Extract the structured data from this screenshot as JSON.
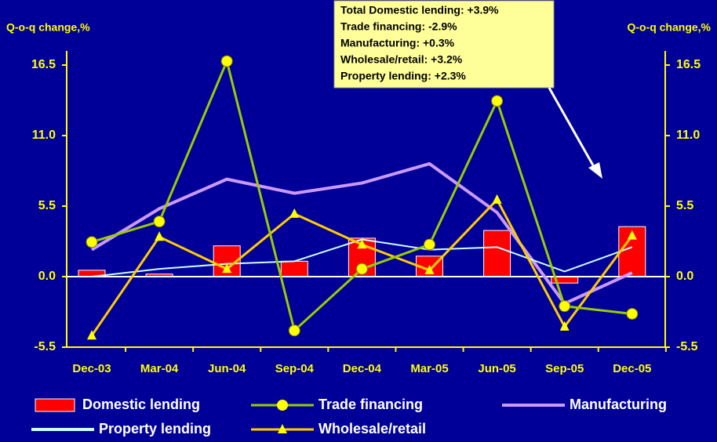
{
  "chart_data": {
    "type": "bar_line",
    "ylabel": "Q-o-q change,%",
    "y2label": "Q-o-q change,%",
    "categories": [
      "Dec-03",
      "Mar-04",
      "Jun-04",
      "Sep-04",
      "Dec-04",
      "Mar-05",
      "Jun-05",
      "Sep-05",
      "Dec-05"
    ],
    "series": [
      {
        "name": "Domestic lending",
        "type": "bar",
        "color": "#ff0000",
        "values": [
          0.5,
          0.2,
          2.4,
          1.2,
          3.0,
          1.6,
          3.6,
          -0.5,
          3.9
        ]
      },
      {
        "name": "Trade financing",
        "type": "line",
        "marker": "circle",
        "color": "#99cc00",
        "marker_color": "#ffff00",
        "values": [
          2.7,
          4.3,
          16.8,
          -4.2,
          0.6,
          2.5,
          13.7,
          -2.3,
          -2.9
        ]
      },
      {
        "name": "Manufacturing",
        "type": "line",
        "color": "#cc99ff",
        "values": [
          2.1,
          5.3,
          7.6,
          6.5,
          7.3,
          8.8,
          5.0,
          -2.1,
          0.3
        ]
      },
      {
        "name": "Property lending",
        "type": "line",
        "color": "#ccffff",
        "values": [
          0.0,
          0.6,
          1.0,
          1.2,
          2.9,
          2.1,
          2.3,
          0.4,
          2.3
        ]
      },
      {
        "name": "Wholesale/retail",
        "type": "line",
        "marker": "triangle",
        "color": "#ffcc00",
        "marker_color": "#ffff00",
        "values": [
          -4.6,
          3.1,
          0.6,
          4.9,
          2.5,
          0.5,
          6.0,
          -3.9,
          3.2
        ]
      }
    ],
    "ylim": [
      -5.5,
      17.6
    ],
    "yticks": [
      {
        "value": -5.5,
        "label": "-5.5"
      },
      {
        "value": 0,
        "label": "0.0"
      },
      {
        "value": 5.5,
        "label": "5.5"
      },
      {
        "value": 11,
        "label": "11.0"
      },
      {
        "value": 16.5,
        "label": "16.5"
      }
    ],
    "y2lim": [
      -5.5,
      17.6
    ],
    "y2ticks": [
      {
        "value": -5.5,
        "label": "-5.5"
      },
      {
        "value": 0,
        "label": "0.0"
      },
      {
        "value": 5.5,
        "label": "5.5"
      },
      {
        "value": 11,
        "label": "11.0"
      },
      {
        "value": 16.5,
        "label": "16.5"
      }
    ],
    "annotations": [
      "Total Domestic lending: +3.9%",
      "Trade financing: -2.9%",
      "Manufacturing: +0.3%",
      "Wholesale/retail: +3.2%",
      "Property lending: +2.3%"
    ]
  }
}
